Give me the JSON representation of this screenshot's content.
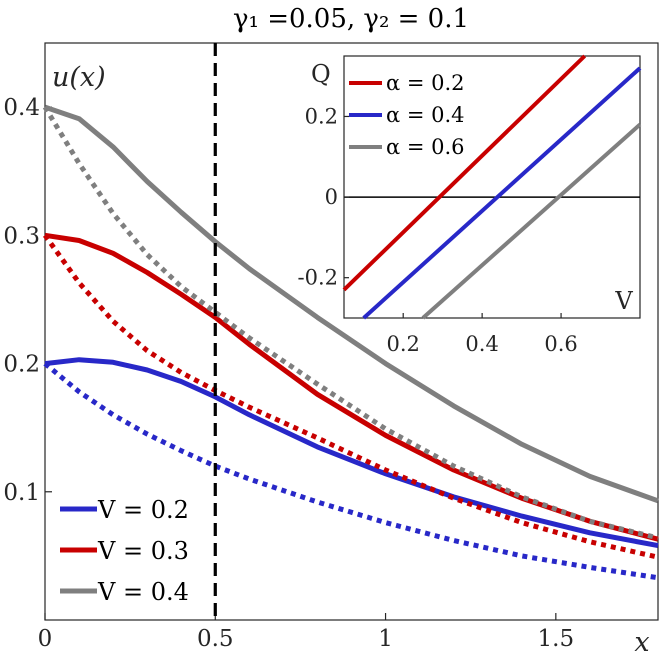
{
  "chart_data": [
    {
      "type": "line",
      "title": "γ₁ =0.05, γ₂ = 0.1",
      "ylabel": "u(x)",
      "xlabel": "x",
      "xlim": [
        0,
        1.8
      ],
      "ylim": [
        0,
        0.45
      ],
      "x_ticks": [
        "0",
        "0.5",
        "1",
        "1.5"
      ],
      "x_tick_values": [
        0,
        0.5,
        1,
        1.5
      ],
      "y_ticks": [
        "0.1",
        "0.2",
        "0.3",
        "0.4"
      ],
      "y_tick_values": [
        0.1,
        0.2,
        0.3,
        0.4
      ],
      "vline": 0.5,
      "legend_location": "lower-left",
      "series": [
        {
          "name": "V = 0.2",
          "color": "#2828c8",
          "style": "solid",
          "x": [
            0,
            0.1,
            0.2,
            0.3,
            0.4,
            0.5,
            0.6,
            0.8,
            1.0,
            1.2,
            1.4,
            1.6,
            1.8
          ],
          "y": [
            0.2,
            0.203,
            0.201,
            0.195,
            0.186,
            0.174,
            0.16,
            0.135,
            0.114,
            0.096,
            0.081,
            0.068,
            0.058
          ]
        },
        {
          "name": "",
          "color": "#2828c8",
          "style": "dotted",
          "x": [
            0,
            0.1,
            0.2,
            0.3,
            0.4,
            0.5,
            0.6,
            0.8,
            1.0,
            1.2,
            1.4,
            1.6,
            1.8
          ],
          "y": [
            0.2,
            0.178,
            0.16,
            0.145,
            0.132,
            0.12,
            0.11,
            0.092,
            0.076,
            0.062,
            0.05,
            0.041,
            0.033
          ]
        },
        {
          "name": "V = 0.3",
          "color": "#c80000",
          "style": "solid",
          "x": [
            0,
            0.1,
            0.2,
            0.3,
            0.4,
            0.5,
            0.6,
            0.8,
            1.0,
            1.2,
            1.4,
            1.6,
            1.8
          ],
          "y": [
            0.3,
            0.296,
            0.286,
            0.271,
            0.254,
            0.236,
            0.215,
            0.176,
            0.144,
            0.117,
            0.095,
            0.077,
            0.063
          ]
        },
        {
          "name": "",
          "color": "#c80000",
          "style": "dotted",
          "x": [
            0,
            0.1,
            0.2,
            0.3,
            0.4,
            0.5,
            0.6,
            0.8,
            1.0,
            1.2,
            1.4,
            1.6,
            1.8
          ],
          "y": [
            0.3,
            0.263,
            0.233,
            0.21,
            0.193,
            0.179,
            0.166,
            0.142,
            0.117,
            0.095,
            0.076,
            0.061,
            0.049
          ]
        },
        {
          "name": "V = 0.4",
          "color": "#7f7f7f",
          "style": "solid",
          "x": [
            0,
            0.1,
            0.2,
            0.3,
            0.4,
            0.5,
            0.6,
            0.8,
            1.0,
            1.2,
            1.4,
            1.6,
            1.8
          ],
          "y": [
            0.4,
            0.391,
            0.369,
            0.342,
            0.318,
            0.295,
            0.274,
            0.236,
            0.2,
            0.167,
            0.137,
            0.112,
            0.093
          ]
        },
        {
          "name": "",
          "color": "#7f7f7f",
          "style": "dotted",
          "x": [
            0,
            0.1,
            0.2,
            0.3,
            0.4,
            0.5,
            0.6,
            0.8,
            1.0,
            1.2,
            1.4,
            1.6,
            1.8
          ],
          "y": [
            0.4,
            0.356,
            0.317,
            0.285,
            0.26,
            0.24,
            0.22,
            0.184,
            0.149,
            0.12,
            0.096,
            0.077,
            0.064
          ]
        }
      ]
    },
    {
      "type": "line",
      "title": "",
      "xlabel": "V",
      "ylabel": "Q",
      "xlim": [
        0.05,
        0.8
      ],
      "ylim": [
        -0.3,
        0.35
      ],
      "x_ticks": [
        "0.2",
        "0.4",
        "0.6"
      ],
      "x_tick_values": [
        0.2,
        0.4,
        0.6
      ],
      "y_ticks": [
        "-0.2",
        "0",
        "0.2"
      ],
      "y_tick_values": [
        -0.2,
        0,
        0.2
      ],
      "zero_line": true,
      "legend_location": "top-left",
      "series": [
        {
          "name": "α = 0.2",
          "color": "#c80000",
          "x": [
            0.05,
            0.66
          ],
          "y": [
            -0.23,
            0.35
          ]
        },
        {
          "name": "α = 0.4",
          "color": "#2828c8",
          "x": [
            0.1,
            0.8
          ],
          "y": [
            -0.3,
            0.32
          ]
        },
        {
          "name": "α = 0.6",
          "color": "#7f7f7f",
          "x": [
            0.25,
            0.8
          ],
          "y": [
            -0.3,
            0.18
          ]
        }
      ]
    }
  ]
}
